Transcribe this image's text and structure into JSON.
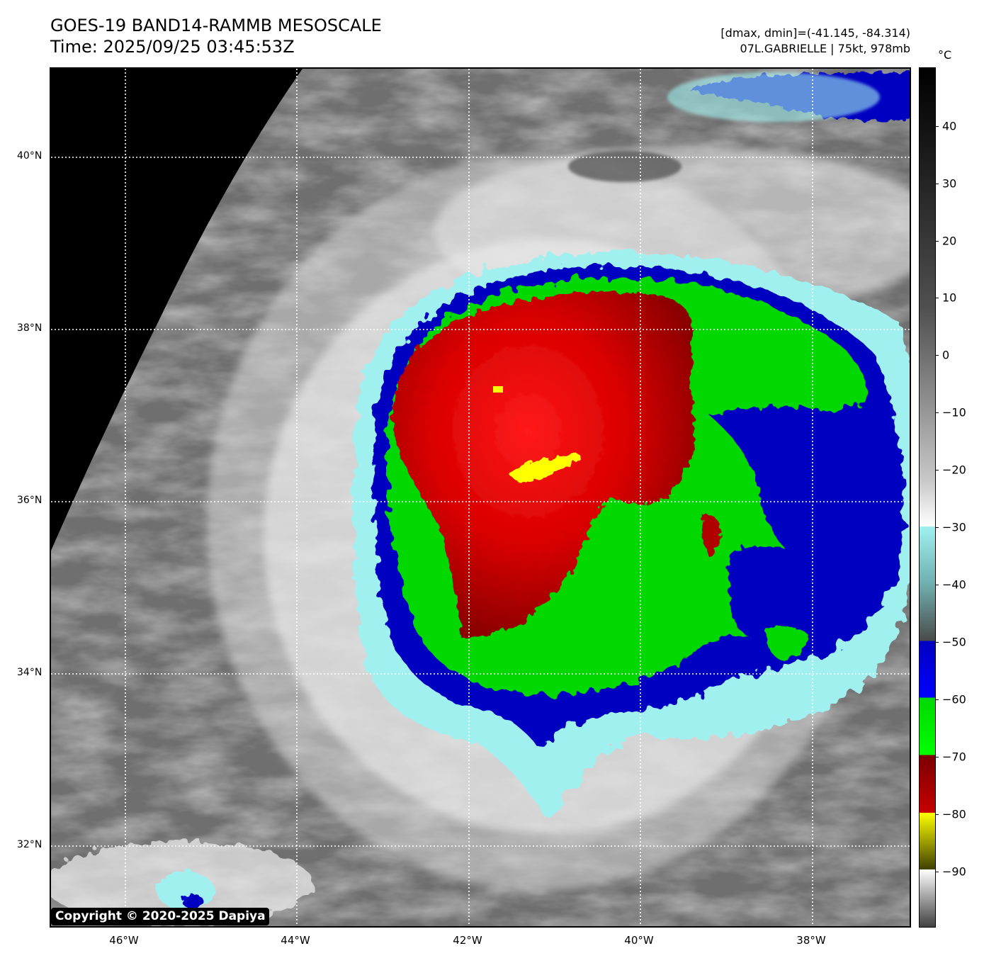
{
  "header": {
    "title_line1": "GOES-19 BAND14-RAMMB MESOSCALE",
    "title_line2": "Time: 2025/09/25 03:45:53Z",
    "dmax_dmin": "[dmax, dmin]=(-41.145, -84.314)",
    "storm_info": "07L.GABRIELLE | 75kt, 978mb"
  },
  "map": {
    "lat_labels": [
      "40°N",
      "38°N",
      "36°N",
      "34°N",
      "32°N"
    ],
    "lon_labels": [
      "46°W",
      "44°W",
      "42°W",
      "40°W",
      "38°W"
    ]
  },
  "colorbar": {
    "unit": "°C",
    "labels": [
      "40",
      "30",
      "20",
      "10",
      "0",
      "−10",
      "−20",
      "−30",
      "−40",
      "−50",
      "−60",
      "−70",
      "−80",
      "−90"
    ],
    "colors": {
      "red": "#c80000",
      "green": "#00d800",
      "blue": "#0000c0",
      "yellow": "#ffff00",
      "cyan": "#a0f0f0"
    }
  },
  "copyright": "Copyright © 2020-2025 Dapiya"
}
